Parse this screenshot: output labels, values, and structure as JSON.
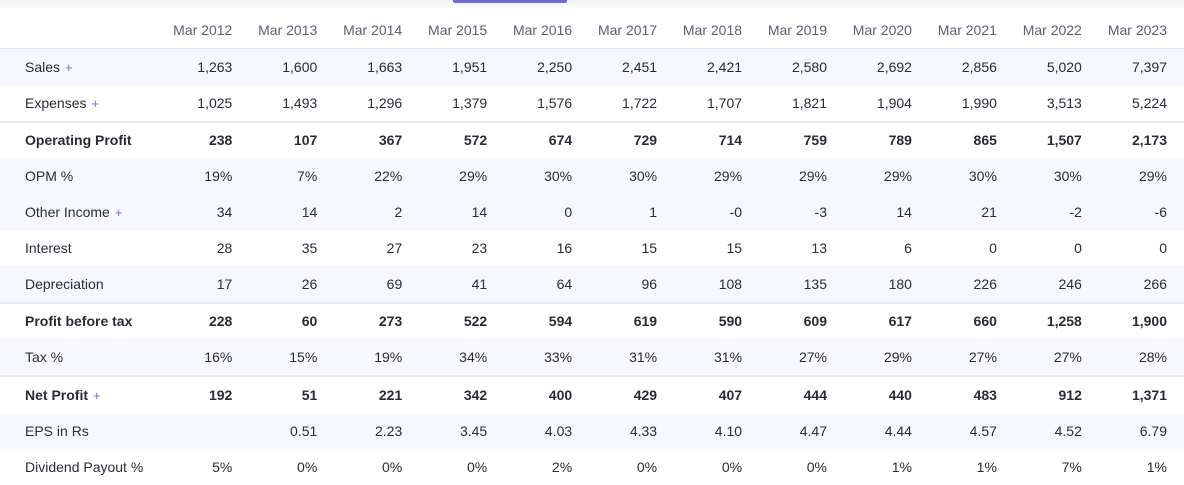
{
  "table": {
    "years": [
      "Mar 2012",
      "Mar 2013",
      "Mar 2014",
      "Mar 2015",
      "Mar 2016",
      "Mar 2017",
      "Mar 2018",
      "Mar 2019",
      "Mar 2020",
      "Mar 2021",
      "Mar 2022",
      "Mar 2023"
    ],
    "expand_symbol": "+",
    "rows": [
      {
        "label": "Sales",
        "expandable": true,
        "values": [
          "1,263",
          "1,600",
          "1,663",
          "1,951",
          "2,250",
          "2,451",
          "2,421",
          "2,580",
          "2,692",
          "2,856",
          "5,020",
          "7,397"
        ]
      },
      {
        "label": "Expenses",
        "expandable": true,
        "values": [
          "1,025",
          "1,493",
          "1,296",
          "1,379",
          "1,576",
          "1,722",
          "1,707",
          "1,821",
          "1,904",
          "1,990",
          "3,513",
          "5,224"
        ]
      },
      {
        "label": "Operating Profit",
        "expandable": false,
        "values": [
          "238",
          "107",
          "367",
          "572",
          "674",
          "729",
          "714",
          "759",
          "789",
          "865",
          "1,507",
          "2,173"
        ]
      },
      {
        "label": "OPM %",
        "expandable": false,
        "values": [
          "19%",
          "7%",
          "22%",
          "29%",
          "30%",
          "30%",
          "29%",
          "29%",
          "29%",
          "30%",
          "30%",
          "29%"
        ]
      },
      {
        "label": "Other Income",
        "expandable": true,
        "values": [
          "34",
          "14",
          "2",
          "14",
          "0",
          "1",
          "-0",
          "-3",
          "14",
          "21",
          "-2",
          "-6"
        ]
      },
      {
        "label": "Interest",
        "expandable": false,
        "values": [
          "28",
          "35",
          "27",
          "23",
          "16",
          "15",
          "15",
          "13",
          "6",
          "0",
          "0",
          "0"
        ]
      },
      {
        "label": "Depreciation",
        "expandable": false,
        "values": [
          "17",
          "26",
          "69",
          "41",
          "64",
          "96",
          "108",
          "135",
          "180",
          "226",
          "246",
          "266"
        ]
      },
      {
        "label": "Profit before tax",
        "expandable": false,
        "values": [
          "228",
          "60",
          "273",
          "522",
          "594",
          "619",
          "590",
          "609",
          "617",
          "660",
          "1,258",
          "1,900"
        ]
      },
      {
        "label": "Tax %",
        "expandable": false,
        "values": [
          "16%",
          "15%",
          "19%",
          "34%",
          "33%",
          "31%",
          "31%",
          "27%",
          "29%",
          "27%",
          "27%",
          "28%"
        ]
      },
      {
        "label": "Net Profit",
        "expandable": true,
        "values": [
          "192",
          "51",
          "221",
          "342",
          "400",
          "429",
          "407",
          "444",
          "440",
          "483",
          "912",
          "1,371"
        ]
      },
      {
        "label": "EPS in Rs",
        "expandable": false,
        "values": [
          "",
          "0.51",
          "2.23",
          "3.45",
          "4.03",
          "4.33",
          "4.10",
          "4.47",
          "4.44",
          "4.57",
          "4.52",
          "6.79"
        ]
      },
      {
        "label": "Dividend Payout %",
        "expandable": false,
        "values": [
          "5%",
          "0%",
          "0%",
          "0%",
          "2%",
          "0%",
          "0%",
          "0%",
          "1%",
          "1%",
          "7%",
          "1%"
        ]
      }
    ]
  }
}
